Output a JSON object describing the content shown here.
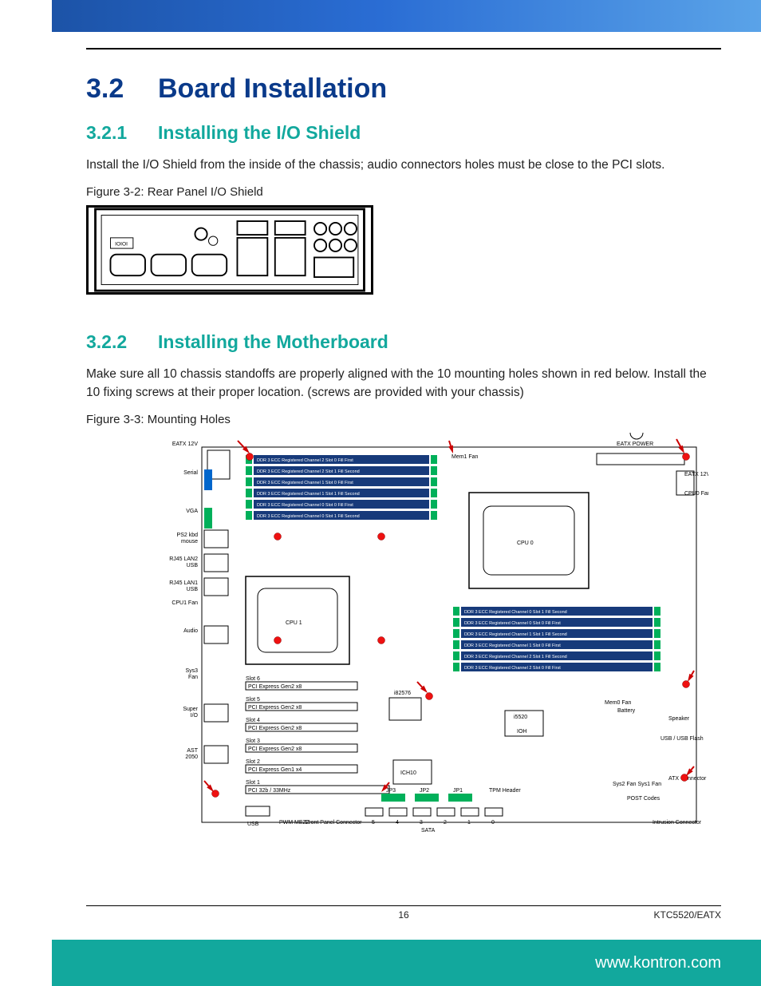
{
  "page": {
    "number": "16",
    "model": "KTC5520/EATX",
    "url": "www.kontron.com"
  },
  "colors": {
    "h1": "#0a3a8a",
    "h2": "#12a89d",
    "banner_teal": "#12a89d",
    "banner_blue_start": "#1a4fa0",
    "banner_blue_end": "#5aa3e8"
  },
  "section": {
    "num": "3.2",
    "title": "Board Installation"
  },
  "sub1": {
    "num": "3.2.1",
    "title": "Installing the I/O Shield",
    "text": "Install the I/O Shield from the inside of the chassis; audio connectors holes must be close to the PCI slots.",
    "caption": "Figure 3-2: Rear Panel I/O Shield"
  },
  "sub2": {
    "num": "3.2.2",
    "title": "Installing the Motherboard",
    "text": "Make sure all 10 chassis standoffs are properly aligned with the 10 mounting holes shown in red below. Install the 10 fixing screws at their proper location. (screws are provided with your chassis)",
    "caption": "Figure 3-3: Mounting Holes"
  },
  "mb": {
    "left_labels": [
      "EATX 12V",
      "Serial",
      "VGA",
      "PS2 kbd\nmouse",
      "RJ45 LAN2\nUSB",
      "RJ45 LAN1\nUSB",
      "CPU1 Fan",
      "Audio",
      "Sys3\nFan",
      "Super\nI/O",
      "AST\n2050"
    ],
    "right_labels": [
      "EATX POWER",
      "EATX 12V",
      "CPU0 Fan",
      "Mem0\nFan",
      "Speaker",
      "USB / USB Flash",
      "ATX Connector",
      "POST Codes",
      "Intrusion\nConnector",
      "Battery",
      "Mem1\nFan"
    ],
    "cpu0": "CPU 0",
    "cpu1": "CPU 1",
    "chips": [
      "i82576",
      "i5520",
      "IOH",
      "ICH10"
    ],
    "ddr_top": [
      "DDR 3 ECC Registered Channel 2 Slot 0  Fill First",
      "DDR 3 ECC Registered Channel 2 Slot 1  Fill Second",
      "DDR 3 ECC Registered Channel 1 Slot 0  Fill First",
      "DDR 3 ECC Registered Channel 1 Slot 1  Fill Second",
      "DDR 3 ECC Registered Channel 0 Slot 0  Fill First",
      "DDR 3 ECC Registered Channel 0 Slot 1  Fill Second"
    ],
    "ddr_right": [
      "DDR 3 ECC Registered Channel 0 Slot 1  Fill Second",
      "DDR 3 ECC Registered Channel 0 Slot 0  Fill First",
      "DDR 3 ECC Registered Channel 1 Slot 1  Fill Second",
      "DDR 3 ECC Registered Channel 1 Slot 0  Fill First",
      "DDR 3 ECC Registered Channel 2 Slot 1  Fill Second",
      "DDR 3 ECC Registered Channel 2 Slot 0  Fill First"
    ],
    "slots": [
      "Slot 6",
      "PCI Express Gen2 x8",
      "Slot 5",
      "PCI Express Gen2 x8",
      "Slot 4",
      "PCI Express Gen2 x8",
      "Slot 3",
      "PCI Express Gen2 x8",
      "Slot 2",
      "PCI Express Gen1 x4",
      "Slot 1",
      "PCI 32b / 33MHz"
    ],
    "bottom": [
      "USB",
      "PWM\nMEZZ",
      "Front Panel\nConnector",
      "SATA",
      "5",
      "4",
      "3",
      "2",
      "1",
      "0",
      "JP3",
      "JP2",
      "JP1",
      "TPM\nHeader",
      "Sys2\nFan",
      "Sys1\nFan"
    ]
  }
}
